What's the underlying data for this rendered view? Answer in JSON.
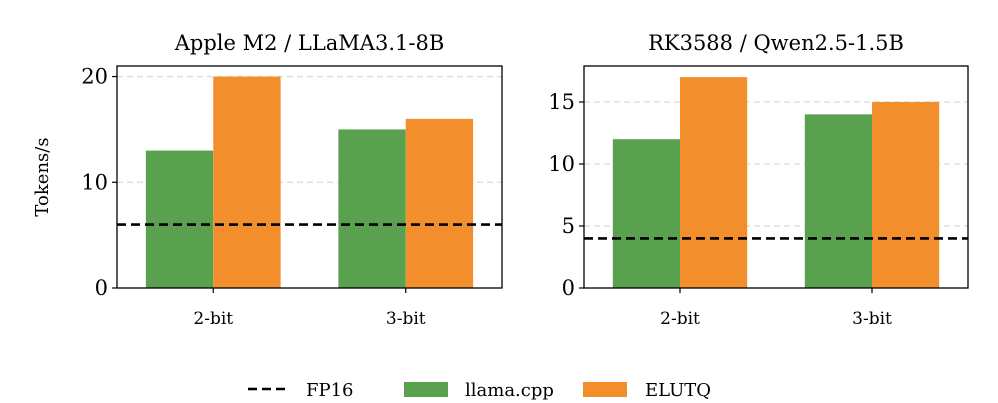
{
  "chart_data": [
    {
      "type": "bar",
      "title": "Apple M2 / LLaMA3.1-8B",
      "ylabel": "Tokens/s",
      "categories": [
        "2-bit",
        "3-bit"
      ],
      "series": [
        {
          "name": "llama.cpp",
          "values": [
            13,
            15
          ],
          "color": "#59a14f"
        },
        {
          "name": "ELUTQ",
          "values": [
            20,
            16
          ],
          "color": "#f28e2b"
        }
      ],
      "reference_line": {
        "name": "FP16",
        "value": 6
      },
      "ylim": [
        0,
        21
      ],
      "yticks": [
        0,
        10,
        20
      ],
      "grid": "horizontal-dashed"
    },
    {
      "type": "bar",
      "title": "RK3588 / Qwen2.5-1.5B",
      "ylabel": "",
      "categories": [
        "2-bit",
        "3-bit"
      ],
      "series": [
        {
          "name": "llama.cpp",
          "values": [
            12,
            14
          ],
          "color": "#59a14f"
        },
        {
          "name": "ELUTQ",
          "values": [
            17,
            15
          ],
          "color": "#f28e2b"
        }
      ],
      "reference_line": {
        "name": "FP16",
        "value": 4
      },
      "ylim": [
        0,
        17.9
      ],
      "yticks": [
        0,
        5,
        10,
        15
      ],
      "grid": "horizontal-dashed"
    }
  ],
  "legend": {
    "placement": "bottom-center",
    "items": [
      {
        "label": "FP16",
        "kind": "dashed-line",
        "color": "#000000"
      },
      {
        "label": "llama.cpp",
        "kind": "patch",
        "color": "#59a14f"
      },
      {
        "label": "ELUTQ",
        "kind": "patch",
        "color": "#f28e2b"
      }
    ]
  }
}
